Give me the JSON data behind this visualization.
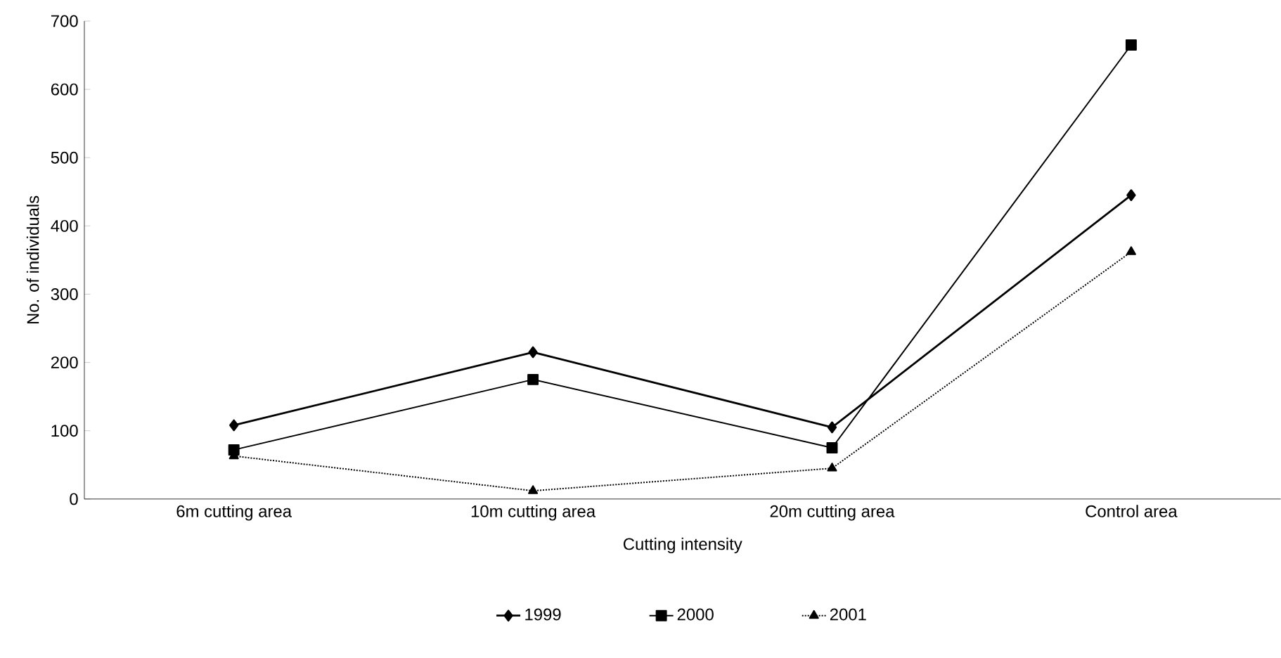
{
  "chart_data": {
    "type": "line",
    "xlabel": "Cutting intensity",
    "ylabel": "No. of individuals",
    "categories": [
      "6m cutting area",
      "10m cutting area",
      "20m cutting area",
      "Control area"
    ],
    "series": [
      {
        "name": "1999",
        "color": "#000000",
        "values": [
          108,
          215,
          105,
          445
        ],
        "marker": "diamond",
        "line_style": "solid"
      },
      {
        "name": "2000",
        "color": "#000000",
        "values": [
          72,
          175,
          75,
          665
        ],
        "marker": "square",
        "line_style": "solid"
      },
      {
        "name": "2001",
        "color": "#000000",
        "values": [
          63,
          12,
          45,
          362
        ],
        "marker": "triangle",
        "line_style": "dotted"
      }
    ],
    "ylim": [
      0,
      700
    ],
    "yticks": [
      0,
      100,
      200,
      300,
      400,
      500,
      600,
      700
    ],
    "grid": false,
    "legend": "bottom"
  }
}
